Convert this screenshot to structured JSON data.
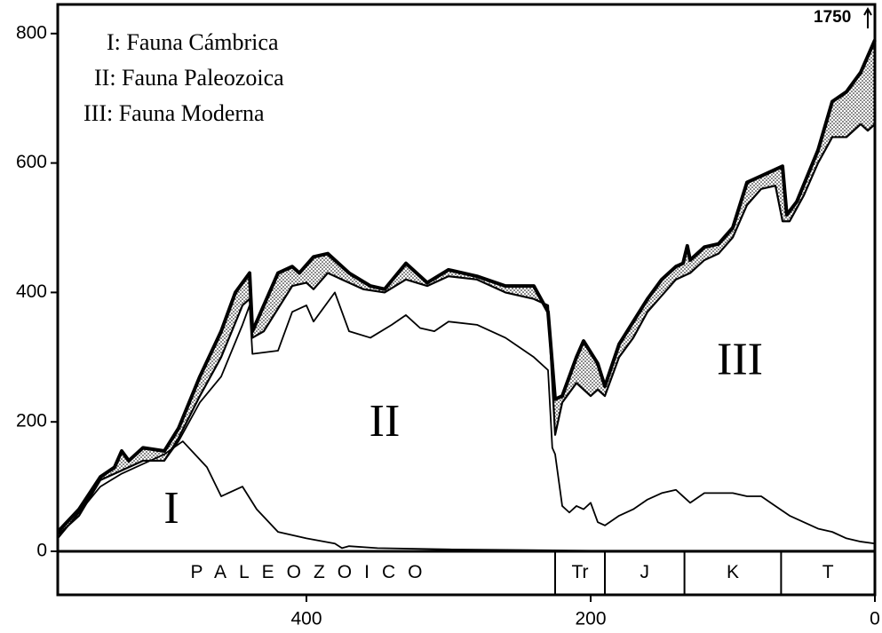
{
  "chart_data": {
    "type": "line",
    "annotation": "1750",
    "legend_lines": [
      "I: Fauna Cámbrica",
      "II: Fauna Paleozoica",
      "III: Fauna Moderna"
    ],
    "region_labels": [
      {
        "text": "I",
        "x": 495,
        "y": 60
      },
      {
        "text": "II",
        "x": 345,
        "y": 195
      },
      {
        "text": "III",
        "x": 95,
        "y": 290
      }
    ],
    "xlim": [
      575,
      0
    ],
    "ylim": [
      0,
      845
    ],
    "xticks": [
      400,
      200,
      0
    ],
    "yticks": [
      0,
      200,
      400,
      600,
      800
    ],
    "periods": [
      {
        "label": "PALEOZOICO",
        "start": 575,
        "end": 225
      },
      {
        "label": "Tr",
        "start": 225,
        "end": 190
      },
      {
        "label": "J",
        "start": 190,
        "end": 134
      },
      {
        "label": "K",
        "start": 134,
        "end": 66
      },
      {
        "label": "T",
        "start": 66,
        "end": 0
      }
    ],
    "band_fill": "stipple",
    "series": [
      {
        "color": "#000",
        "x": [
          575,
          560,
          545,
          530,
          515,
          500,
          487,
          470,
          460,
          445,
          435,
          420,
          400,
          380,
          375,
          370,
          350,
          300,
          250,
          200,
          100,
          0
        ],
        "values": [
          20,
          60,
          100,
          120,
          135,
          150,
          170,
          130,
          85,
          100,
          65,
          30,
          20,
          12,
          5,
          8,
          5,
          3,
          2,
          1,
          1,
          1
        ]
      },
      {
        "color": "#000",
        "x": [
          575,
          560,
          545,
          530,
          515,
          500,
          490,
          475,
          460,
          445,
          440,
          438,
          420,
          410,
          400,
          395,
          380,
          370,
          355,
          340,
          330,
          320,
          310,
          300,
          280,
          260,
          240,
          230,
          227,
          225,
          220,
          215,
          210,
          205,
          200,
          195,
          190,
          180,
          170,
          160,
          150,
          140,
          135,
          130,
          120,
          100,
          90,
          80,
          70,
          60,
          50,
          40,
          30,
          20,
          10,
          0
        ],
        "values": [
          20,
          60,
          110,
          125,
          140,
          140,
          170,
          230,
          270,
          350,
          380,
          305,
          310,
          370,
          380,
          355,
          400,
          340,
          330,
          350,
          365,
          345,
          340,
          355,
          350,
          330,
          300,
          280,
          160,
          150,
          70,
          60,
          70,
          65,
          75,
          45,
          40,
          55,
          65,
          80,
          90,
          95,
          85,
          75,
          90,
          90,
          85,
          85,
          70,
          55,
          45,
          35,
          30,
          20,
          15,
          12
        ]
      },
      {
        "color": "#000",
        "x": [
          575,
          560,
          545,
          530,
          515,
          500,
          490,
          475,
          460,
          445,
          440,
          438,
          430,
          420,
          410,
          400,
          395,
          385,
          375,
          360,
          345,
          330,
          315,
          300,
          280,
          260,
          240,
          230,
          225,
          220,
          210,
          200,
          195,
          190,
          180,
          170,
          160,
          150,
          140,
          130,
          120,
          110,
          100,
          90,
          80,
          70,
          65,
          60,
          50,
          40,
          30,
          20,
          15,
          10,
          5,
          0
        ],
        "values": [
          25,
          55,
          110,
          125,
          140,
          140,
          175,
          240,
          300,
          380,
          390,
          330,
          340,
          375,
          410,
          415,
          405,
          430,
          420,
          405,
          400,
          420,
          410,
          425,
          420,
          400,
          390,
          380,
          180,
          230,
          260,
          240,
          250,
          240,
          300,
          330,
          370,
          395,
          420,
          430,
          450,
          460,
          485,
          535,
          560,
          565,
          510,
          510,
          550,
          600,
          640,
          640,
          650,
          660,
          650,
          660
        ]
      },
      {
        "color": "#000",
        "x": [
          575,
          560,
          545,
          535,
          530,
          525,
          515,
          500,
          490,
          475,
          460,
          450,
          440,
          438,
          430,
          420,
          410,
          405,
          395,
          385,
          370,
          355,
          345,
          330,
          315,
          300,
          280,
          260,
          240,
          230,
          225,
          220,
          210,
          205,
          195,
          190,
          180,
          170,
          160,
          150,
          140,
          135,
          132,
          130,
          120,
          110,
          100,
          90,
          80,
          65,
          62,
          55,
          40,
          30,
          20,
          10,
          0
        ],
        "values": [
          30,
          65,
          115,
          130,
          155,
          140,
          160,
          155,
          190,
          270,
          340,
          400,
          430,
          340,
          380,
          430,
          440,
          430,
          455,
          460,
          430,
          410,
          405,
          445,
          415,
          435,
          425,
          410,
          410,
          370,
          235,
          240,
          300,
          325,
          290,
          255,
          320,
          355,
          390,
          420,
          440,
          445,
          472,
          450,
          470,
          475,
          500,
          570,
          580,
          595,
          520,
          540,
          620,
          695,
          710,
          740,
          790
        ]
      }
    ]
  }
}
